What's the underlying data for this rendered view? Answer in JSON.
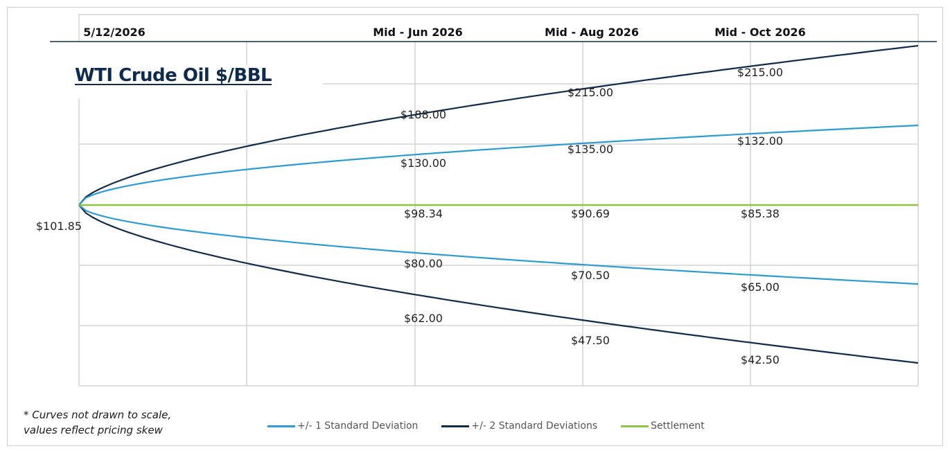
{
  "chart_data": {
    "type": "line",
    "title": "WTI Crude Oil $/BBL",
    "x_labels": [
      "5/12/2026",
      "Mid - Jun 2026",
      "Mid - Aug 2026",
      "Mid - Oct 2026"
    ],
    "start_value": "$101.85",
    "series": [
      {
        "name": "+/- 1 Standard Deviation",
        "color": "#2b9bd6",
        "upper": [
          130.0,
          135.0,
          132.0
        ],
        "lower": [
          80.0,
          70.5,
          65.0
        ],
        "upper_labels": [
          "$130.00",
          "$135.00",
          "$132.00"
        ],
        "lower_labels": [
          "$80.00",
          "$70.50",
          "$65.00"
        ]
      },
      {
        "name": "+/- 2 Standard Deviations",
        "color": "#0e2a4e",
        "upper": [
          188.0,
          215.0,
          215.0
        ],
        "lower": [
          62.0,
          47.5,
          42.5
        ],
        "upper_labels": [
          "$188.00",
          "$215.00",
          "$215.00"
        ],
        "lower_labels": [
          "$62.00",
          "$47.50",
          "$42.50"
        ]
      },
      {
        "name": "Settlement",
        "color": "#8cc63f",
        "values": [
          98.34,
          90.69,
          85.38
        ],
        "labels": [
          "$98.34",
          "$90.69",
          "$85.38"
        ]
      }
    ],
    "grid": true,
    "legend_position": "bottom"
  },
  "note": [
    "* Curves not drawn to scale,",
    "values reflect pricing skew"
  ]
}
